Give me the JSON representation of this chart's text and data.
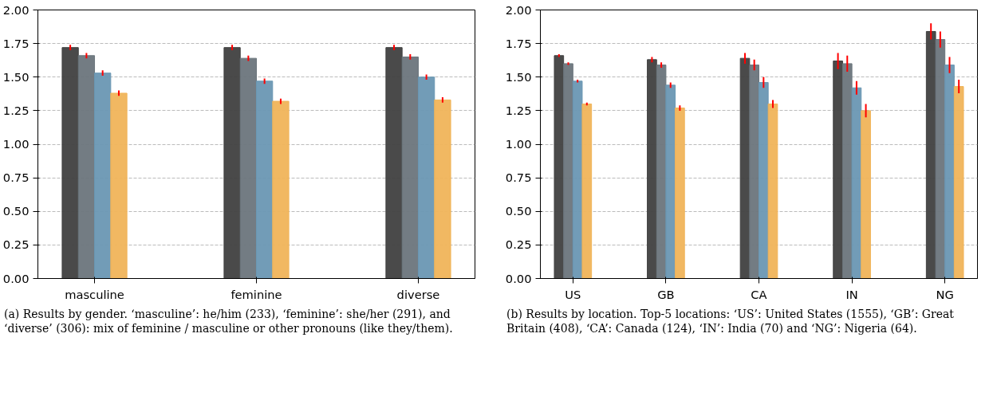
{
  "chart_data": [
    {
      "type": "bar",
      "categories": [
        "masculine",
        "feminine",
        "diverse"
      ],
      "series": [
        {
          "color": "#404040",
          "values": [
            1.72,
            1.72,
            1.72
          ],
          "errors": [
            0.02,
            0.02,
            0.02
          ]
        },
        {
          "color": "#6b757c",
          "values": [
            1.66,
            1.64,
            1.65
          ],
          "errors": [
            0.02,
            0.02,
            0.02
          ]
        },
        {
          "color": "#6a97b3",
          "values": [
            1.53,
            1.47,
            1.5
          ],
          "errors": [
            0.02,
            0.02,
            0.02
          ]
        },
        {
          "color": "#f0b45a",
          "values": [
            1.38,
            1.32,
            1.33
          ],
          "errors": [
            0.02,
            0.02,
            0.02
          ]
        }
      ],
      "ylim": [
        0,
        2
      ],
      "yticks": [
        {
          "value": 0,
          "label": "0.00"
        },
        {
          "value": 0.25,
          "label": "0.25"
        },
        {
          "value": 0.5,
          "label": "0.50"
        },
        {
          "value": 0.75,
          "label": "0.75"
        },
        {
          "value": 1,
          "label": "1.00"
        },
        {
          "value": 1.25,
          "label": "1.25"
        },
        {
          "value": 1.5,
          "label": "1.50"
        },
        {
          "value": 1.75,
          "label": "1.75"
        },
        {
          "value": 2,
          "label": "2.00"
        }
      ],
      "grid": "y",
      "annotations": [
        "(a) Results by gender. ‘masculine’: he/him (233), ‘feminine’: she/her (291), and ‘diverse’ (306): mix of feminine / masculine or other pronouns (like they/them)."
      ]
    },
    {
      "type": "bar",
      "categories": [
        "US",
        "GB",
        "CA",
        "IN",
        "NG"
      ],
      "series": [
        {
          "color": "#404040",
          "values": [
            1.66,
            1.63,
            1.64,
            1.62,
            1.84
          ],
          "errors": [
            0.01,
            0.02,
            0.04,
            0.06,
            0.06
          ]
        },
        {
          "color": "#6b757c",
          "values": [
            1.6,
            1.59,
            1.59,
            1.6,
            1.78
          ],
          "errors": [
            0.01,
            0.02,
            0.04,
            0.06,
            0.06
          ]
        },
        {
          "color": "#6a97b3",
          "values": [
            1.47,
            1.44,
            1.46,
            1.42,
            1.59
          ],
          "errors": [
            0.01,
            0.02,
            0.04,
            0.05,
            0.06
          ]
        },
        {
          "color": "#f0b45a",
          "values": [
            1.3,
            1.27,
            1.3,
            1.25,
            1.43
          ],
          "errors": [
            0.01,
            0.02,
            0.03,
            0.05,
            0.05
          ]
        }
      ],
      "ylim": [
        0,
        2
      ],
      "yticks": [
        {
          "value": 0,
          "label": "0.00"
        },
        {
          "value": 0.25,
          "label": "0.25"
        },
        {
          "value": 0.5,
          "label": "0.50"
        },
        {
          "value": 0.75,
          "label": "0.75"
        },
        {
          "value": 1,
          "label": "1.00"
        },
        {
          "value": 1.25,
          "label": "1.25"
        },
        {
          "value": 1.5,
          "label": "1.50"
        },
        {
          "value": 1.75,
          "label": "1.75"
        },
        {
          "value": 2,
          "label": "2.00"
        }
      ],
      "grid": "y",
      "annotations": [
        "(b) Results by location. Top-5 locations: ‘US’: United States (1555), ‘GB’: Great Britain (408), ‘CA’: Canada (124), ‘IN’: India (70) and ‘NG’: Nigeria (64)."
      ]
    }
  ]
}
